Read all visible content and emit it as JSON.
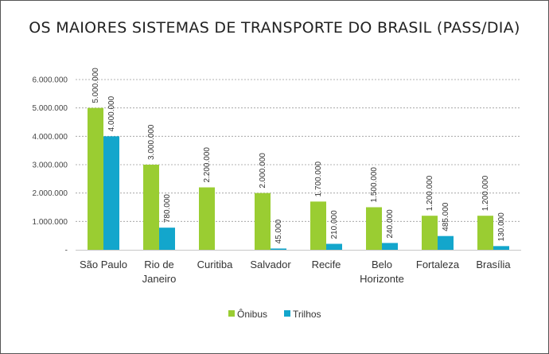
{
  "chart_data": {
    "type": "bar",
    "title": "OS MAIORES SISTEMAS DE TRANSPORTE DO BRASIL (PASS/DIA)",
    "xlabel": "",
    "ylabel": "",
    "ylim": [
      0,
      6000000
    ],
    "yticks": [
      0,
      1000000,
      2000000,
      3000000,
      4000000,
      5000000,
      6000000
    ],
    "ytick_labels": [
      "-",
      "1.000.000",
      "2.000.000",
      "3.000.000",
      "4.000.000",
      "5.000.000",
      "6.000.000"
    ],
    "grid": true,
    "legend": "bottom",
    "categories": [
      [
        "São Paulo"
      ],
      [
        "Rio de",
        "Janeiro"
      ],
      [
        "Curitiba"
      ],
      [
        "Salvador"
      ],
      [
        "Recife"
      ],
      [
        "Belo",
        "Horizonte"
      ],
      [
        "Fortaleza"
      ],
      [
        "Brasília"
      ]
    ],
    "series": [
      {
        "name": "Ônibus",
        "color": "#9ACD32",
        "values": [
          5000000,
          3000000,
          2200000,
          2000000,
          1700000,
          1500000,
          1200000,
          1200000
        ],
        "labels": [
          "5.000.000",
          "3.000.000",
          "2.200.000",
          "2.000.000",
          "1.700.000",
          "1.500.000",
          "1.200.000",
          "1.200.000"
        ]
      },
      {
        "name": "Trilhos",
        "color": "#13A6CC",
        "values": [
          4000000,
          780000,
          null,
          45000,
          210000,
          240000,
          485000,
          130000
        ],
        "labels": [
          "4.000.000",
          "780.000",
          "",
          "45.000",
          "210.000",
          "240.000",
          "485.000",
          "130.000"
        ]
      }
    ]
  }
}
